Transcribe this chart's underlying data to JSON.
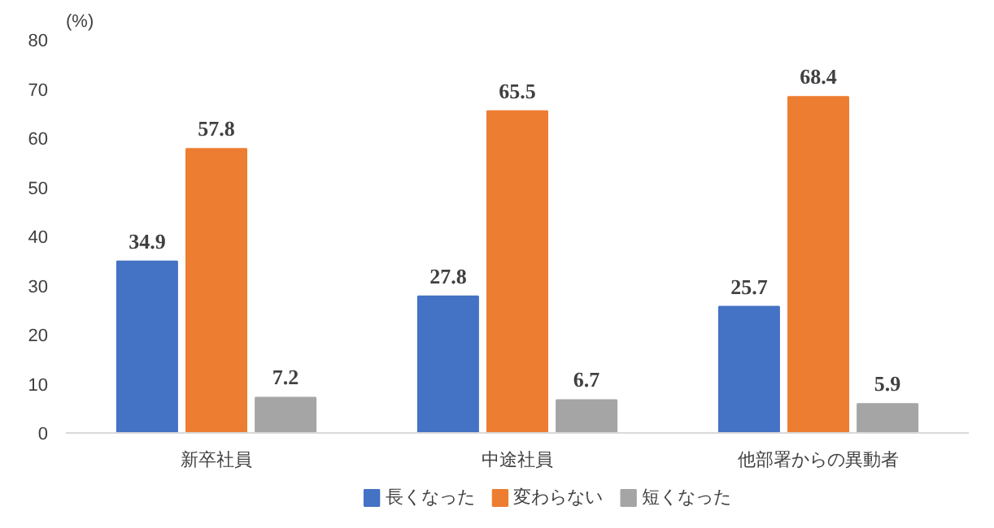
{
  "chart_data": {
    "type": "bar",
    "ylabel": "(%)",
    "categories": [
      "新卒社員",
      "中途社員",
      "他部署からの異動者"
    ],
    "series": [
      {
        "name": "長くなった",
        "color": "#4472c4",
        "values": [
          34.9,
          27.8,
          25.7
        ]
      },
      {
        "name": "変わらない",
        "color": "#ed7d31",
        "values": [
          57.8,
          65.5,
          68.4
        ]
      },
      {
        "name": "短くなった",
        "color": "#a5a5a5",
        "values": [
          7.2,
          6.7,
          5.9
        ]
      }
    ],
    "ylim": [
      0,
      80
    ],
    "yticks": [
      0,
      10,
      20,
      30,
      40,
      50,
      60,
      70,
      80
    ],
    "grid": false,
    "legend": "bottom",
    "data_labels": true
  }
}
